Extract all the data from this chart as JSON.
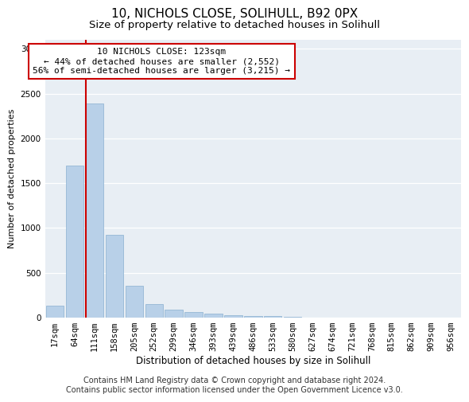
{
  "title1": "10, NICHOLS CLOSE, SOLIHULL, B92 0PX",
  "title2": "Size of property relative to detached houses in Solihull",
  "xlabel": "Distribution of detached houses by size in Solihull",
  "ylabel": "Number of detached properties",
  "categories": [
    "17sqm",
    "64sqm",
    "111sqm",
    "158sqm",
    "205sqm",
    "252sqm",
    "299sqm",
    "346sqm",
    "393sqm",
    "439sqm",
    "486sqm",
    "533sqm",
    "580sqm",
    "627sqm",
    "674sqm",
    "721sqm",
    "768sqm",
    "815sqm",
    "862sqm",
    "909sqm",
    "956sqm"
  ],
  "values": [
    130,
    1700,
    2390,
    920,
    355,
    155,
    90,
    65,
    45,
    30,
    20,
    15,
    10,
    5,
    3,
    2,
    1,
    1,
    0,
    0,
    0
  ],
  "bar_color": "#b8d0e8",
  "bar_edge_color": "#8ab0d0",
  "vline_color": "#cc0000",
  "annotation_line1": "10 NICHOLS CLOSE: 123sqm",
  "annotation_line2": "← 44% of detached houses are smaller (2,552)",
  "annotation_line3": "56% of semi-detached houses are larger (3,215) →",
  "annotation_box_facecolor": "#ffffff",
  "annotation_box_edgecolor": "#cc0000",
  "ylim": [
    0,
    3100
  ],
  "yticks": [
    0,
    500,
    1000,
    1500,
    2000,
    2500,
    3000
  ],
  "footer1": "Contains HM Land Registry data © Crown copyright and database right 2024.",
  "footer2": "Contains public sector information licensed under the Open Government Licence v3.0.",
  "plot_bg_color": "#e8eef4",
  "grid_color": "#ffffff",
  "title1_fontsize": 11,
  "title2_fontsize": 9.5,
  "annot_fontsize": 8,
  "footer_fontsize": 7,
  "ylabel_fontsize": 8,
  "xlabel_fontsize": 8.5,
  "tick_fontsize": 7.5,
  "vline_xindex": 1.575
}
